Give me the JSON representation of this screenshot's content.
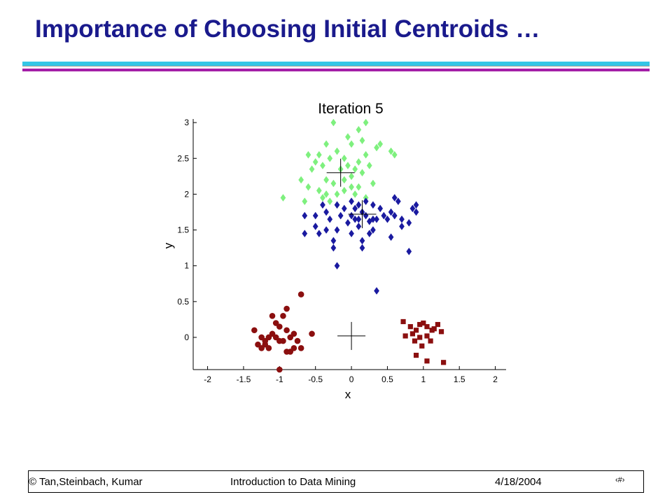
{
  "slide": {
    "title": "Importance of Choosing Initial Centroids …",
    "footer": {
      "authors": "© Tan,Steinbach, Kumar",
      "course": "Introduction to Data Mining",
      "date": "4/18/2004",
      "page": "‹#›"
    }
  },
  "chart_data": {
    "type": "scatter",
    "title": "Iteration 5",
    "xlabel": "x",
    "ylabel": "y",
    "xlim": [
      -2.2,
      2.15
    ],
    "ylim": [
      -0.45,
      3.05
    ],
    "xticks": [
      -2,
      -1.5,
      -1,
      -0.5,
      0,
      0.5,
      1,
      1.5,
      2
    ],
    "xtick_labels": [
      "-2",
      "-1.5",
      "-1",
      "-0.5",
      "0",
      "0.5",
      "1",
      "1.5",
      "2"
    ],
    "yticks": [
      0,
      0.5,
      1,
      1.5,
      2,
      2.5,
      3
    ],
    "ytick_labels": [
      "0",
      "0.5",
      "1",
      "1.5",
      "2",
      "2.5",
      "3"
    ],
    "grid": false,
    "series": [
      {
        "color": "#7ef07e",
        "marker": "diamond",
        "points": [
          [
            -0.25,
            3.0
          ],
          [
            0.2,
            3.0
          ],
          [
            -0.05,
            2.8
          ],
          [
            0.1,
            2.9
          ],
          [
            -0.35,
            2.7
          ],
          [
            0.15,
            2.75
          ],
          [
            0.0,
            2.7
          ],
          [
            0.35,
            2.65
          ],
          [
            0.4,
            2.7
          ],
          [
            0.55,
            2.6
          ],
          [
            0.6,
            2.55
          ],
          [
            -0.6,
            2.55
          ],
          [
            -0.5,
            2.45
          ],
          [
            -0.45,
            2.55
          ],
          [
            -0.3,
            2.5
          ],
          [
            -0.2,
            2.6
          ],
          [
            -0.1,
            2.5
          ],
          [
            0.1,
            2.45
          ],
          [
            0.2,
            2.55
          ],
          [
            0.25,
            2.4
          ],
          [
            -0.55,
            2.35
          ],
          [
            -0.4,
            2.4
          ],
          [
            -0.15,
            2.35
          ],
          [
            -0.05,
            2.4
          ],
          [
            0.05,
            2.35
          ],
          [
            0.15,
            2.3
          ],
          [
            -0.7,
            2.2
          ],
          [
            -0.6,
            2.1
          ],
          [
            -0.35,
            2.2
          ],
          [
            -0.25,
            2.15
          ],
          [
            -0.1,
            2.2
          ],
          [
            0.0,
            2.25
          ],
          [
            0.1,
            2.1
          ],
          [
            0.3,
            2.15
          ],
          [
            -0.45,
            2.05
          ],
          [
            -0.35,
            2.0
          ],
          [
            -0.2,
            2.0
          ],
          [
            -0.1,
            2.05
          ],
          [
            0.0,
            2.1
          ],
          [
            -0.4,
            1.95
          ],
          [
            -0.3,
            1.9
          ],
          [
            0.05,
            2.0
          ],
          [
            -0.95,
            1.95
          ],
          [
            -0.65,
            1.9
          ],
          [
            -0.2,
            1.85
          ],
          [
            0.2,
            1.95
          ]
        ]
      },
      {
        "color": "#1a1aa0",
        "marker": "diamond",
        "points": [
          [
            -0.4,
            1.85
          ],
          [
            -0.2,
            1.85
          ],
          [
            0.0,
            1.9
          ],
          [
            0.1,
            1.85
          ],
          [
            0.2,
            1.9
          ],
          [
            0.3,
            1.85
          ],
          [
            0.6,
            1.95
          ],
          [
            0.65,
            1.9
          ],
          [
            0.9,
            1.85
          ],
          [
            -0.35,
            1.75
          ],
          [
            -0.1,
            1.8
          ],
          [
            0.05,
            1.8
          ],
          [
            0.15,
            1.75
          ],
          [
            0.4,
            1.8
          ],
          [
            0.55,
            1.75
          ],
          [
            0.85,
            1.8
          ],
          [
            -0.65,
            1.7
          ],
          [
            -0.5,
            1.7
          ],
          [
            -0.3,
            1.65
          ],
          [
            -0.15,
            1.7
          ],
          [
            0.0,
            1.7
          ],
          [
            0.1,
            1.65
          ],
          [
            0.2,
            1.7
          ],
          [
            0.3,
            1.65
          ],
          [
            0.45,
            1.7
          ],
          [
            0.6,
            1.7
          ],
          [
            0.7,
            1.65
          ],
          [
            -0.05,
            1.6
          ],
          [
            0.05,
            1.65
          ],
          [
            0.25,
            1.62
          ],
          [
            0.35,
            1.65
          ],
          [
            0.5,
            1.65
          ],
          [
            0.8,
            1.6
          ],
          [
            0.9,
            1.75
          ],
          [
            -0.5,
            1.55
          ],
          [
            -0.35,
            1.5
          ],
          [
            -0.2,
            1.5
          ],
          [
            0.1,
            1.55
          ],
          [
            0.3,
            1.5
          ],
          [
            0.7,
            1.55
          ],
          [
            -0.65,
            1.45
          ],
          [
            -0.45,
            1.45
          ],
          [
            0.0,
            1.45
          ],
          [
            0.25,
            1.45
          ],
          [
            -0.25,
            1.35
          ],
          [
            0.15,
            1.35
          ],
          [
            0.55,
            1.4
          ],
          [
            -0.25,
            1.25
          ],
          [
            0.15,
            1.25
          ],
          [
            0.8,
            1.2
          ],
          [
            -0.2,
            1.0
          ],
          [
            0.35,
            0.65
          ]
        ]
      },
      {
        "color": "#8b0f0f",
        "marker": "circle",
        "points": [
          [
            -1.35,
            0.1
          ],
          [
            -1.25,
            0.0
          ],
          [
            -1.2,
            -0.1
          ],
          [
            -1.1,
            0.05
          ],
          [
            -1.05,
            0.2
          ],
          [
            -1.0,
            0.15
          ],
          [
            -0.9,
            0.1
          ],
          [
            -0.85,
            0.0
          ],
          [
            -0.8,
            0.05
          ],
          [
            -0.75,
            -0.05
          ],
          [
            -0.7,
            -0.15
          ],
          [
            -0.9,
            -0.2
          ],
          [
            -1.0,
            -0.05
          ],
          [
            -1.15,
            -0.15
          ],
          [
            -1.3,
            -0.1
          ],
          [
            -1.2,
            -0.05
          ],
          [
            -0.95,
            0.3
          ],
          [
            -0.9,
            0.4
          ],
          [
            -1.1,
            0.3
          ],
          [
            -0.7,
            0.6
          ],
          [
            -0.55,
            0.05
          ],
          [
            -1.25,
            -0.15
          ],
          [
            -0.85,
            -0.2
          ],
          [
            -1.0,
            -0.45
          ],
          [
            -1.05,
            0.0
          ],
          [
            -1.15,
            0.0
          ],
          [
            -0.8,
            -0.15
          ],
          [
            -0.95,
            -0.05
          ]
        ]
      },
      {
        "color": "#8b0f0f",
        "marker": "square",
        "points": [
          [
            0.72,
            0.22
          ],
          [
            0.82,
            0.15
          ],
          [
            0.9,
            0.1
          ],
          [
            0.95,
            0.18
          ],
          [
            1.0,
            0.2
          ],
          [
            1.05,
            0.15
          ],
          [
            1.12,
            0.1
          ],
          [
            1.2,
            0.18
          ],
          [
            1.25,
            0.08
          ],
          [
            0.85,
            0.05
          ],
          [
            0.95,
            0.0
          ],
          [
            1.05,
            0.02
          ],
          [
            1.15,
            0.12
          ],
          [
            0.75,
            0.02
          ],
          [
            0.88,
            -0.05
          ],
          [
            0.98,
            -0.12
          ],
          [
            1.1,
            -0.05
          ],
          [
            0.9,
            -0.25
          ],
          [
            1.05,
            -0.33
          ],
          [
            1.28,
            -0.35
          ]
        ]
      }
    ],
    "centroids": [
      [
        -0.15,
        2.3
      ],
      [
        0.15,
        1.72
      ],
      [
        0.0,
        0.02
      ]
    ]
  }
}
